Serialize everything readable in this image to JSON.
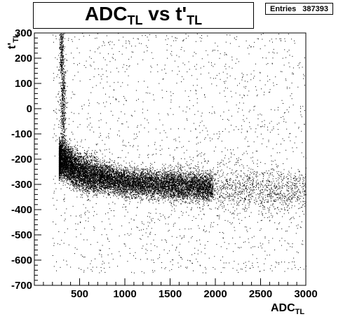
{
  "title": {
    "main": "ADC",
    "sub": "TL",
    "mid": " vs t'",
    "sub2": "TL"
  },
  "stats": {
    "entries_label": "Entries",
    "entries_value": "387393"
  },
  "chart_data": {
    "type": "scatter",
    "xlabel": {
      "main": "ADC",
      "sub": "TL"
    },
    "ylabel": {
      "main": "t'",
      "sub": "TL"
    },
    "xlim": [
      0,
      3000
    ],
    "ylim": [
      -700,
      300
    ],
    "x_ticks": [
      500,
      1000,
      1500,
      2000,
      2500,
      3000
    ],
    "y_ticks": [
      300,
      200,
      100,
      0,
      -100,
      -200,
      -300,
      -400,
      -500,
      -600,
      -700
    ],
    "density_ridge": [
      {
        "x": 300,
        "y": -200
      },
      {
        "x": 500,
        "y": -250
      },
      {
        "x": 1000,
        "y": -290
      },
      {
        "x": 1500,
        "y": -300
      },
      {
        "x": 2000,
        "y": -310
      },
      {
        "x": 2500,
        "y": -320
      },
      {
        "x": 3000,
        "y": -330
      }
    ],
    "vertical_band": {
      "x": 300,
      "y_range": [
        -150,
        300
      ]
    },
    "grid": false,
    "marker_color": "#000000"
  }
}
